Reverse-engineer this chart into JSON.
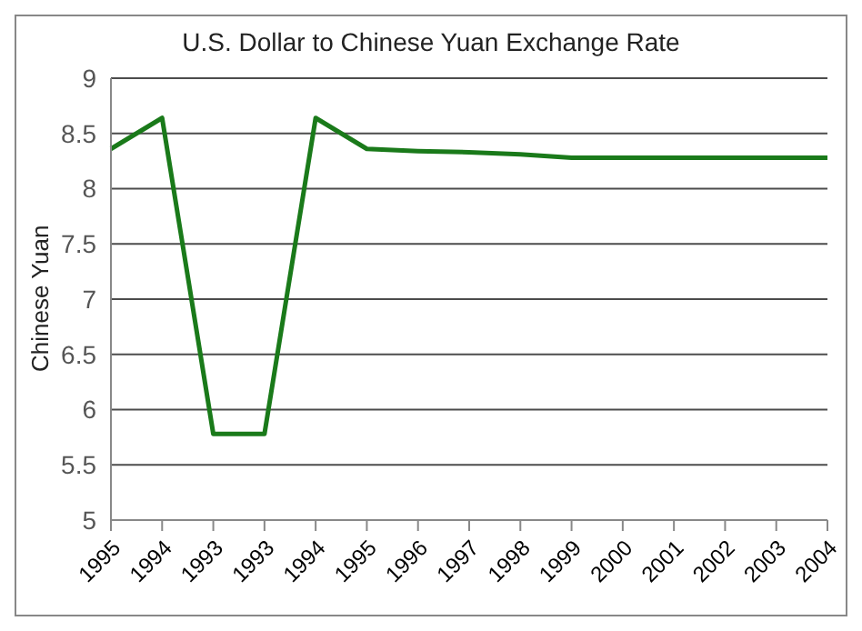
{
  "chart_data": {
    "type": "line",
    "title": "U.S. Dollar to Chinese Yuan Exchange Rate",
    "ylabel": "Chinese Yuan",
    "categories": [
      "1995",
      "1994",
      "1993",
      "1993",
      "1994",
      "1995",
      "1996",
      "1997",
      "1998",
      "1999",
      "2000",
      "2001",
      "2002",
      "2003",
      "2004"
    ],
    "series": [
      {
        "color": "#1a7a1a",
        "values": [
          8.36,
          8.64,
          5.78,
          5.78,
          8.64,
          8.36,
          8.34,
          8.33,
          8.31,
          8.28,
          8.28,
          8.28,
          8.28,
          8.28,
          8.28
        ]
      }
    ],
    "ylim": [
      5,
      9
    ],
    "yticks": [
      5,
      5.5,
      6,
      6.5,
      7,
      7.5,
      8,
      8.5,
      9
    ],
    "grid": "y",
    "legend": false,
    "marker": "none",
    "line_style": "solid"
  }
}
